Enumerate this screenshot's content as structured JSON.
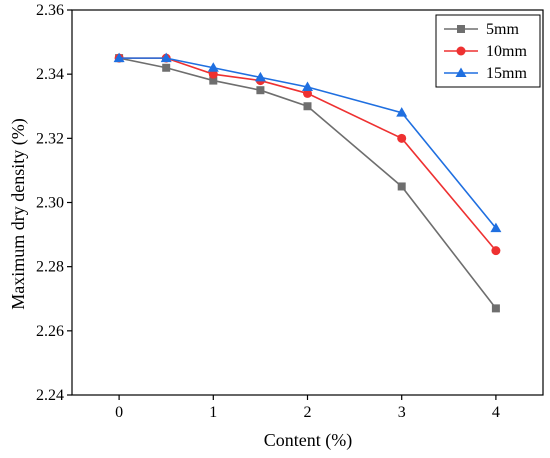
{
  "chart_data": {
    "type": "line",
    "xlabel": "Content (%)",
    "ylabel": "Maximum dry density (%)",
    "x_ticks": [
      0,
      1,
      2,
      3,
      4
    ],
    "y_ticks": [
      2.24,
      2.26,
      2.28,
      2.3,
      2.32,
      2.34,
      2.36
    ],
    "y_tick_labels": [
      "2.24",
      "2.26",
      "2.28",
      "2.30",
      "2.32",
      "2.34",
      "2.36"
    ],
    "xlim": [
      -0.5,
      4.5
    ],
    "ylim": [
      2.24,
      2.36
    ],
    "grid": false,
    "legend_position": "top-right",
    "series": [
      {
        "name": "5mm",
        "color": "#6e6e6e",
        "marker": "square",
        "x": [
          0,
          0.5,
          1,
          1.5,
          2,
          3,
          4
        ],
        "y": [
          2.345,
          2.342,
          2.338,
          2.335,
          2.33,
          2.305,
          2.267
        ]
      },
      {
        "name": "10mm",
        "color": "#ee3131",
        "marker": "circle",
        "x": [
          0,
          0.5,
          1,
          1.5,
          2,
          3,
          4
        ],
        "y": [
          2.345,
          2.345,
          2.34,
          2.338,
          2.334,
          2.32,
          2.285
        ]
      },
      {
        "name": "15mm",
        "color": "#1f6fe0",
        "marker": "triangle",
        "x": [
          0,
          0.5,
          1,
          1.5,
          2,
          3,
          4
        ],
        "y": [
          2.345,
          2.345,
          2.342,
          2.339,
          2.336,
          2.328,
          2.292
        ]
      }
    ]
  }
}
